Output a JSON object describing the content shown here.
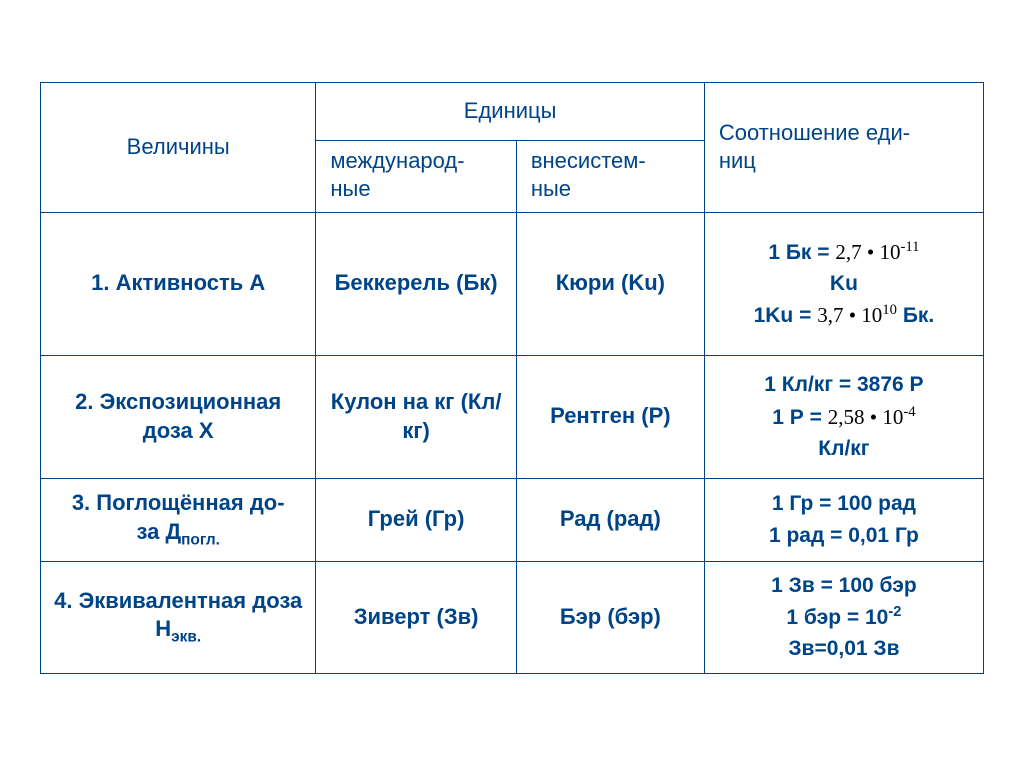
{
  "table": {
    "border_color": "#004488",
    "text_color_header": "#004488",
    "text_color_body": "#004488",
    "formula_color": "#000000",
    "background_color": "#ffffff",
    "font_size_body": 22,
    "headers": {
      "quantities": "Величины",
      "units": "Единицы",
      "international": "международ-\nные",
      "nonsystem": "внесистем-\nные",
      "ratio": "Соотношение еди-\nниц"
    },
    "rows": [
      {
        "quantity": "1. Активность А",
        "intl": "Беккерель (Бк)",
        "nonsi": "Кюри (Ku)",
        "ratio_parts": {
          "l1_pre": "1 Бк = ",
          "l1_formula_base": "2,7",
          "l1_formula_dot": "•",
          "l1_formula_ten": "10",
          "l1_formula_exp": "-11",
          "l2": "Ku",
          "l3_pre": "1Ku = ",
          "l3_formula_base": "3,7",
          "l3_formula_dot": "•",
          "l3_formula_ten": "10",
          "l3_formula_exp": "10",
          "l3_post": " Бк."
        }
      },
      {
        "quantity": "2. Экспозиционная доза Х",
        "intl": "Кулон на кг (Кл/кг)",
        "nonsi": "Рентген (Р)",
        "ratio_parts": {
          "l1": "1 Кл/кг = 3876 Р",
          "l2_pre": "1 Р = ",
          "l2_formula_base": "2,58",
          "l2_formula_dot": "•",
          "l2_formula_ten": "10",
          "l2_formula_exp": "-4",
          "l3": "Кл/кг"
        }
      },
      {
        "quantity_main": "3. Поглощённая до-\nза Д",
        "quantity_sub": "погл.",
        "intl": "Грей (Гр)",
        "nonsi": "Рад (рад)",
        "ratio_l1": "1 Гр = 100 рад",
        "ratio_l2": "1 рад = 0,01 Гр"
      },
      {
        "quantity_main": "4. Эквивалентная доза Н",
        "quantity_sub": "экв.",
        "intl": "Зиверт (Зв)",
        "nonsi": "Бэр (бэр)",
        "ratio_l1": "1 Зв = 100 бэр",
        "ratio_l2_pre": "1 бэр = 10",
        "ratio_l2_exp": "-2",
        "ratio_l3": "Зв=0,01 Зв"
      }
    ]
  }
}
